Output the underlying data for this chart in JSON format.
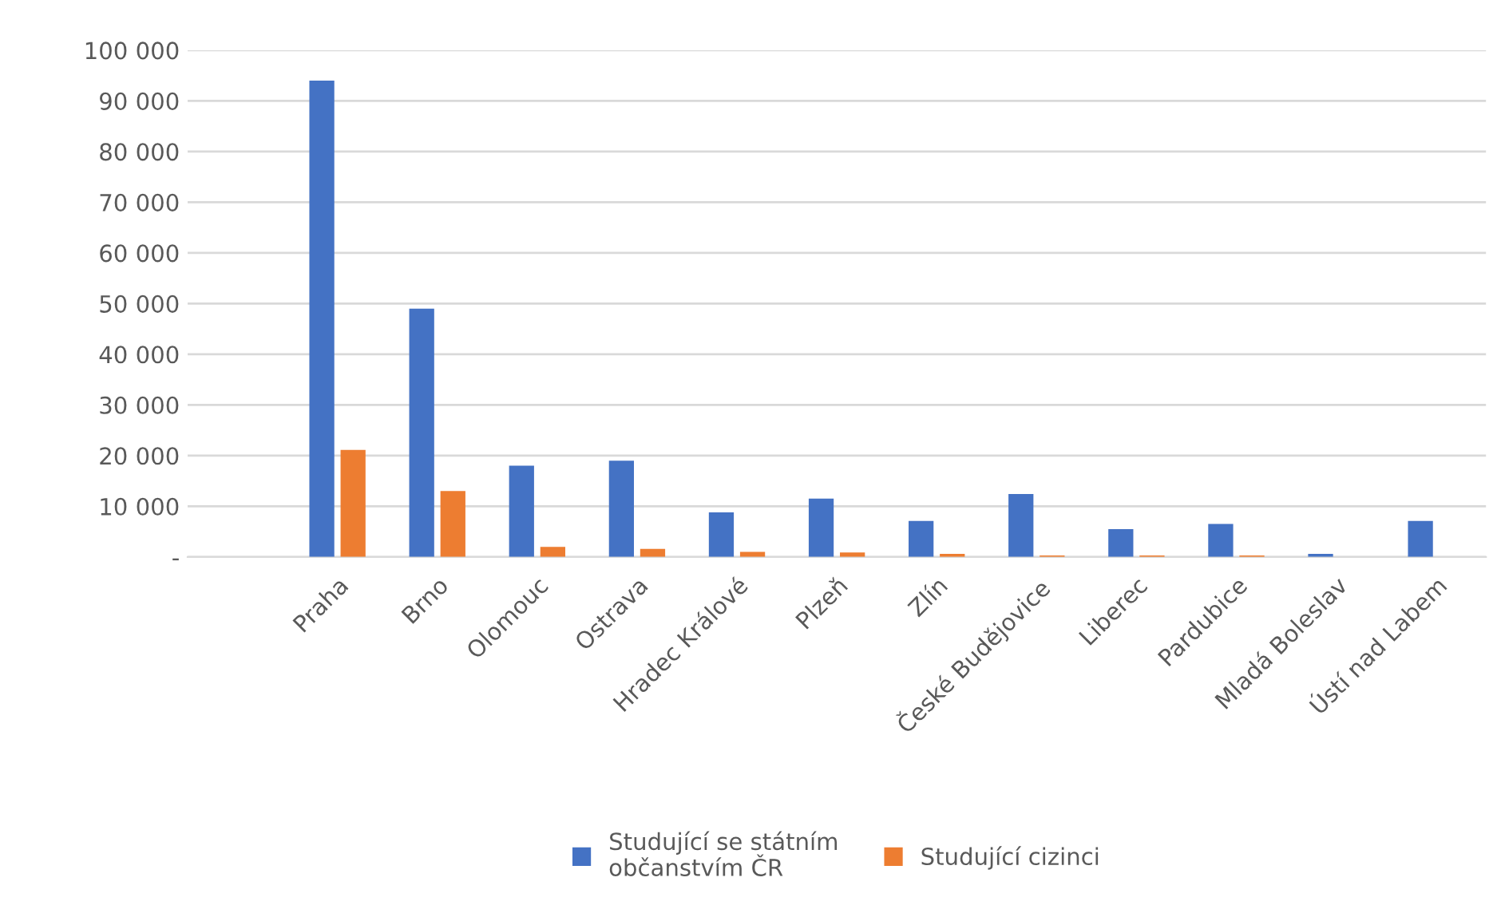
{
  "chart_data": {
    "type": "bar",
    "categories": [
      null,
      "Praha",
      "Brno",
      "Olomouc",
      "Ostrava",
      "Hradec Králové",
      "Plzeň",
      "Zlín",
      "České Budějovice",
      "Liberec",
      "Pardubice",
      "Mladá Boleslav",
      "Ústí nad Labem"
    ],
    "series": [
      {
        "name": "Studující se státním\nobčanstvím ČR",
        "color": "#4472c4",
        "values": [
          null,
          94000,
          49000,
          18000,
          19000,
          8800,
          11500,
          7100,
          12400,
          5500,
          6500,
          600,
          7100
        ]
      },
      {
        "name": "Studující cizinci",
        "color": "#ed7d31",
        "values": [
          null,
          21100,
          13000,
          2000,
          1600,
          1000,
          900,
          600,
          300,
          300,
          300,
          null,
          null
        ]
      }
    ],
    "ylim": [
      0,
      100000
    ],
    "yticks": [
      {
        "value": 0,
        "label": "-"
      },
      {
        "value": 10000,
        "label": "10 000"
      },
      {
        "value": 20000,
        "label": "20 000"
      },
      {
        "value": 30000,
        "label": "30 000"
      },
      {
        "value": 40000,
        "label": "40 000"
      },
      {
        "value": 50000,
        "label": "50 000"
      },
      {
        "value": 60000,
        "label": "60 000"
      },
      {
        "value": 70000,
        "label": "70 000"
      },
      {
        "value": 80000,
        "label": "80 000"
      },
      {
        "value": 90000,
        "label": "90 000"
      },
      {
        "value": 100000,
        "label": "100 000"
      }
    ],
    "grid": "y",
    "legend": "bottom"
  }
}
